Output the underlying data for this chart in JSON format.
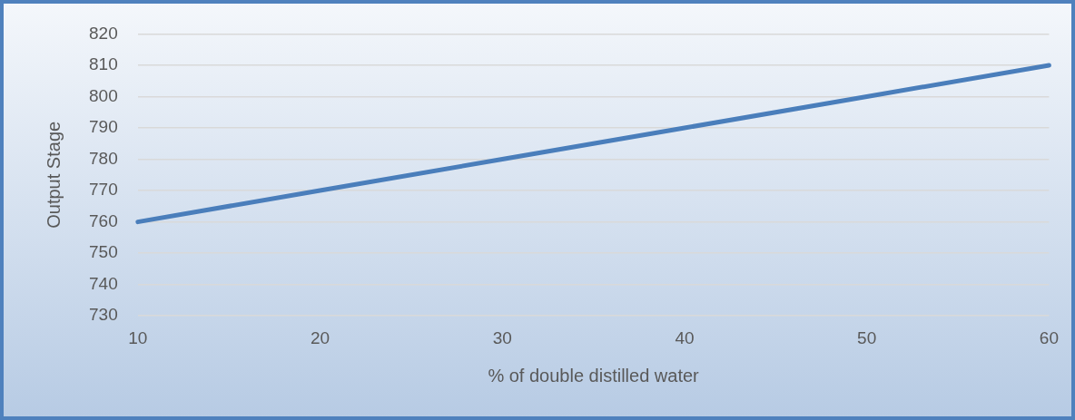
{
  "chart_data": {
    "type": "line",
    "xlabel": "% of double distilled water",
    "ylabel": "Output Stage",
    "categories": [
      "10",
      "20",
      "30",
      "40",
      "50",
      "60"
    ],
    "series": [
      {
        "color": "#4a7ebb",
        "values": [
          760,
          770,
          780,
          790,
          800,
          810
        ]
      }
    ],
    "ylim": [
      730,
      820
    ],
    "yticks": [
      730,
      740,
      750,
      760,
      770,
      780,
      790,
      800,
      810,
      820
    ],
    "grid": "y",
    "legend": false,
    "marker": "none",
    "line_style": "solid"
  }
}
